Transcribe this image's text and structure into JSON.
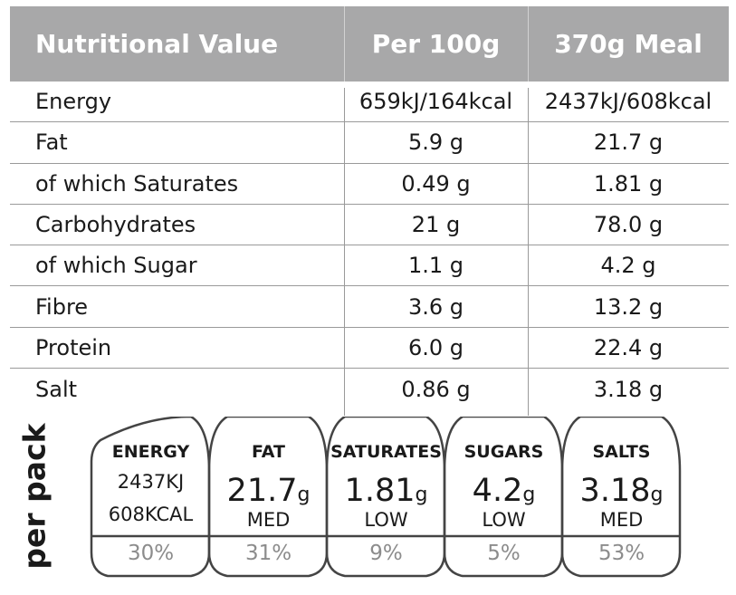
{
  "table": {
    "headers": [
      "Nutritional Value",
      "Per 100g",
      "370g Meal"
    ],
    "header_bg": "#a8a8a9",
    "rows": [
      [
        "Energy",
        "659kJ/164kcal",
        "2437kJ/608kcal"
      ],
      [
        "Fat",
        "5.9 g",
        "21.7 g"
      ],
      [
        "of which Saturates",
        "0.49 g",
        "1.81 g"
      ],
      [
        "Carbohydrates",
        "21 g",
        "78.0 g"
      ],
      [
        "of which Sugar",
        "1.1 g",
        "4.2 g"
      ],
      [
        "Fibre",
        "3.6 g",
        "13.2 g"
      ],
      [
        "Protein",
        "6.0 g",
        "22.4 g"
      ],
      [
        "Salt",
        "0.86 g",
        "3.18 g"
      ]
    ]
  },
  "per_pack": "per pack",
  "gda": [
    {
      "title": "ENERGY",
      "line1": "2437KJ",
      "line2": "608KCAL",
      "pct": "30%"
    },
    {
      "title": "FAT",
      "value": "21.7",
      "unit": "g",
      "level": "MED",
      "pct": "31%"
    },
    {
      "title": "SATURATES",
      "value": "1.81",
      "unit": "g",
      "level": "LOW",
      "pct": "9%"
    },
    {
      "title": "SUGARS",
      "value": "4.2",
      "unit": "g",
      "level": "LOW",
      "pct": "5%"
    },
    {
      "title": "SALTS",
      "value": "3.18",
      "unit": "g",
      "level": "MED",
      "pct": "53%"
    }
  ],
  "pct_color": "#8c8c8c"
}
